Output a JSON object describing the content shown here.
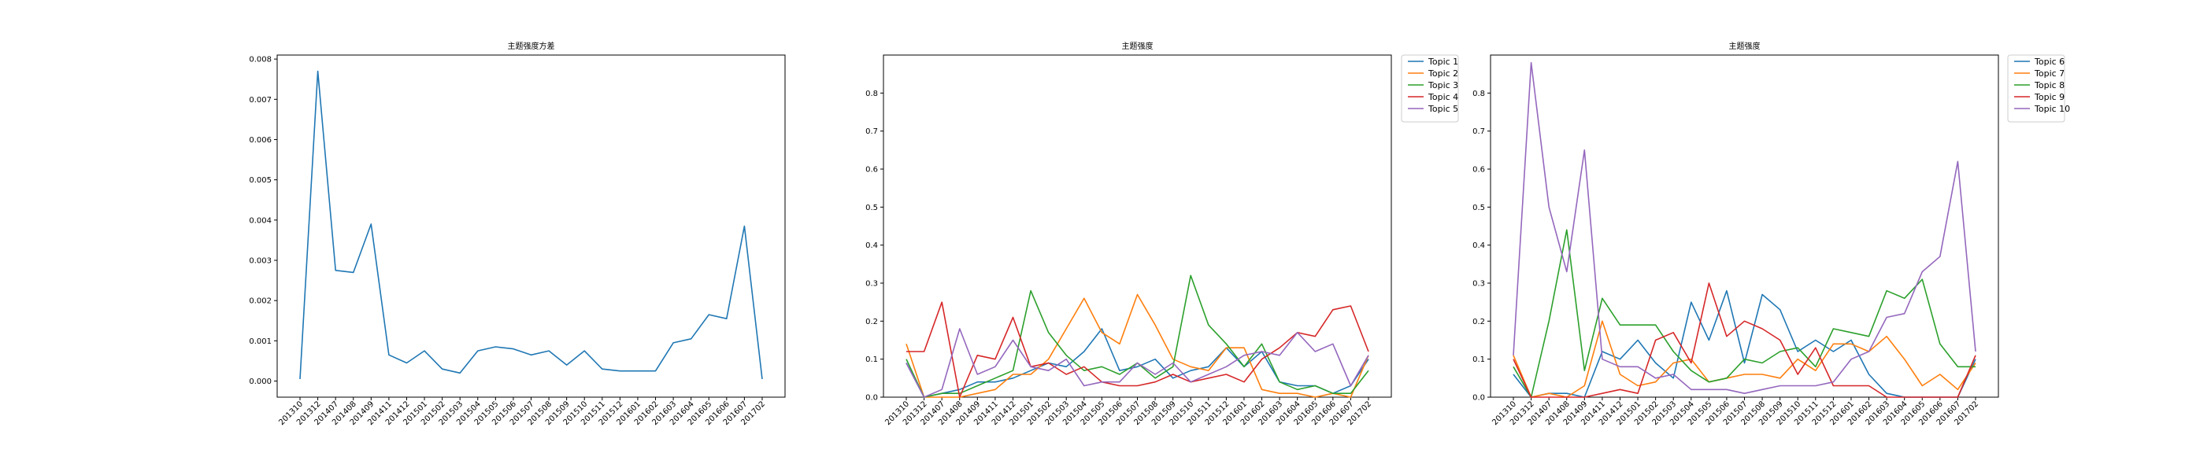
{
  "chart_data": [
    {
      "type": "line",
      "title": "主题强度方差",
      "xlabel": "",
      "ylabel": "",
      "ylim": [
        -0.0004,
        0.0081
      ],
      "yticks": [
        "0.000",
        "0.001",
        "0.002",
        "0.003",
        "0.004",
        "0.005",
        "0.006",
        "0.007",
        "0.008"
      ],
      "x": [
        "201310",
        "201312",
        "201407",
        "201408",
        "201409",
        "201411",
        "201412",
        "201501",
        "201502",
        "201503",
        "201504",
        "201505",
        "201506",
        "201507",
        "201508",
        "201509",
        "201510",
        "201511",
        "201512",
        "201601",
        "201602",
        "201603",
        "201604",
        "201605",
        "201606",
        "201607",
        "201702"
      ],
      "series": [
        {
          "name": "",
          "color": "#1f77b4",
          "values": [
            5e-05,
            0.0077,
            0.00275,
            0.0027,
            0.0039,
            0.00065,
            0.00045,
            0.00075,
            0.0003,
            0.0002,
            0.00075,
            0.00085,
            0.0008,
            0.00065,
            0.00075,
            0.0004,
            0.00075,
            0.0003,
            0.00025,
            0.00025,
            0.00025,
            0.00095,
            0.00105,
            0.00165,
            0.00155,
            0.00385,
            5e-05
          ]
        }
      ],
      "grid": false,
      "legend": "none"
    },
    {
      "type": "line",
      "title": "主题强度",
      "xlabel": "",
      "ylabel": "",
      "ylim": [
        0,
        0.9
      ],
      "yticks": [
        "0.0",
        "0.1",
        "0.2",
        "0.3",
        "0.4",
        "0.5",
        "0.6",
        "0.7",
        "0.8"
      ],
      "x": [
        "201310",
        "201312",
        "201407",
        "201408",
        "201409",
        "201411",
        "201412",
        "201501",
        "201502",
        "201503",
        "201504",
        "201505",
        "201506",
        "201507",
        "201508",
        "201509",
        "201510",
        "201511",
        "201512",
        "201601",
        "201602",
        "201603",
        "201604",
        "201605",
        "201606",
        "201607",
        "201702"
      ],
      "series": [
        {
          "name": "Topic 1",
          "color": "#1f77b4",
          "values": [
            0.09,
            0.0,
            0.01,
            0.02,
            0.04,
            0.04,
            0.05,
            0.07,
            0.09,
            0.08,
            0.12,
            0.18,
            0.07,
            0.08,
            0.1,
            0.05,
            0.07,
            0.08,
            0.13,
            0.08,
            0.12,
            0.04,
            0.03,
            0.03,
            0.01,
            0.03,
            0.1
          ]
        },
        {
          "name": "Topic 2",
          "color": "#ff7f0e",
          "values": [
            0.14,
            0.0,
            0.0,
            0.0,
            0.01,
            0.02,
            0.06,
            0.06,
            0.1,
            0.18,
            0.26,
            0.17,
            0.14,
            0.27,
            0.19,
            0.1,
            0.08,
            0.07,
            0.13,
            0.13,
            0.02,
            0.01,
            0.01,
            0.0,
            0.01,
            0.0,
            0.11
          ]
        },
        {
          "name": "Topic 3",
          "color": "#2ca02c",
          "values": [
            0.1,
            0.0,
            0.01,
            0.01,
            0.03,
            0.05,
            0.07,
            0.28,
            0.17,
            0.11,
            0.07,
            0.08,
            0.06,
            0.09,
            0.05,
            0.08,
            0.32,
            0.19,
            0.14,
            0.08,
            0.14,
            0.04,
            0.02,
            0.03,
            0.01,
            0.01,
            0.07
          ]
        },
        {
          "name": "Topic 4",
          "color": "#d62728",
          "values": [
            0.12,
            0.12,
            0.25,
            0.0,
            0.11,
            0.1,
            0.21,
            0.08,
            0.09,
            0.06,
            0.08,
            0.04,
            0.03,
            0.03,
            0.04,
            0.06,
            0.04,
            0.05,
            0.06,
            0.04,
            0.1,
            0.13,
            0.17,
            0.16,
            0.23,
            0.24,
            0.12
          ]
        },
        {
          "name": "Topic 5",
          "color": "#9467bd",
          "values": [
            0.09,
            0.0,
            0.02,
            0.18,
            0.06,
            0.08,
            0.15,
            0.08,
            0.07,
            0.1,
            0.03,
            0.04,
            0.04,
            0.09,
            0.06,
            0.09,
            0.04,
            0.06,
            0.08,
            0.11,
            0.12,
            0.11,
            0.17,
            0.12,
            0.14,
            0.03,
            0.11
          ]
        }
      ],
      "grid": false,
      "legend": "outside-top-right"
    },
    {
      "type": "line",
      "title": "主题强度",
      "xlabel": "",
      "ylabel": "",
      "ylim": [
        0,
        0.9
      ],
      "yticks": [
        "0.0",
        "0.1",
        "0.2",
        "0.3",
        "0.4",
        "0.5",
        "0.6",
        "0.7",
        "0.8"
      ],
      "x": [
        "201310",
        "201312",
        "201407",
        "201408",
        "201409",
        "201411",
        "201412",
        "201501",
        "201502",
        "201503",
        "201504",
        "201505",
        "201506",
        "201507",
        "201508",
        "201509",
        "201510",
        "201511",
        "201512",
        "201601",
        "201602",
        "201603",
        "201604",
        "201605",
        "201606",
        "201607",
        "201702"
      ],
      "series": [
        {
          "name": "Topic 6",
          "color": "#1f77b4",
          "values": [
            0.06,
            0.0,
            0.01,
            0.01,
            0.0,
            0.12,
            0.1,
            0.15,
            0.09,
            0.05,
            0.25,
            0.15,
            0.28,
            0.09,
            0.27,
            0.23,
            0.12,
            0.15,
            0.12,
            0.15,
            0.06,
            0.01,
            0.0,
            0.0,
            0.0,
            0.0,
            0.1
          ]
        },
        {
          "name": "Topic 7",
          "color": "#ff7f0e",
          "values": [
            0.11,
            0.0,
            0.01,
            0.0,
            0.03,
            0.2,
            0.06,
            0.03,
            0.04,
            0.09,
            0.1,
            0.04,
            0.05,
            0.06,
            0.06,
            0.05,
            0.1,
            0.07,
            0.14,
            0.14,
            0.12,
            0.16,
            0.1,
            0.03,
            0.06,
            0.02,
            0.09
          ]
        },
        {
          "name": "Topic 8",
          "color": "#2ca02c",
          "values": [
            0.08,
            0.0,
            0.2,
            0.44,
            0.07,
            0.26,
            0.19,
            0.19,
            0.19,
            0.12,
            0.07,
            0.04,
            0.05,
            0.1,
            0.09,
            0.12,
            0.13,
            0.08,
            0.18,
            0.17,
            0.16,
            0.28,
            0.26,
            0.31,
            0.14,
            0.08,
            0.08
          ]
        },
        {
          "name": "Topic 9",
          "color": "#d62728",
          "values": [
            0.1,
            0.0,
            0.0,
            0.0,
            0.0,
            0.01,
            0.02,
            0.01,
            0.15,
            0.17,
            0.09,
            0.3,
            0.16,
            0.2,
            0.18,
            0.15,
            0.06,
            0.13,
            0.03,
            0.03,
            0.03,
            0.0,
            0.0,
            0.0,
            0.0,
            0.0,
            0.11
          ]
        },
        {
          "name": "Topic 10",
          "color": "#9467bd",
          "values": [
            0.11,
            0.88,
            0.5,
            0.33,
            0.65,
            0.1,
            0.08,
            0.08,
            0.05,
            0.06,
            0.02,
            0.02,
            0.02,
            0.01,
            0.02,
            0.03,
            0.03,
            0.03,
            0.04,
            0.1,
            0.12,
            0.21,
            0.22,
            0.33,
            0.37,
            0.62,
            0.12
          ]
        }
      ],
      "grid": false,
      "legend": "outside-top-right"
    }
  ]
}
